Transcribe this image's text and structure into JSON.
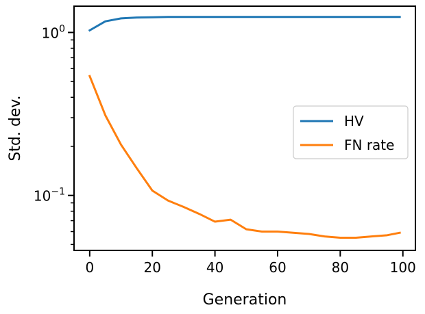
{
  "chart_data": {
    "type": "line",
    "xlabel": "Generation",
    "ylabel": "Std. dev.",
    "xlim": [
      -5,
      104
    ],
    "ylim": [
      0.046,
      1.45
    ],
    "yscale": "log",
    "grid": false,
    "legend_position": "center-right",
    "x_ticks": [
      {
        "value": 0,
        "label": "0"
      },
      {
        "value": 20,
        "label": "20"
      },
      {
        "value": 40,
        "label": "40"
      },
      {
        "value": 60,
        "label": "60"
      },
      {
        "value": 80,
        "label": "80"
      },
      {
        "value": 100,
        "label": "100"
      }
    ],
    "y_major_ticks": [
      {
        "value": 0.1,
        "base": "10",
        "exp": "−1"
      },
      {
        "value": 1.0,
        "base": "10",
        "exp": "0"
      }
    ],
    "y_minor_ticks": [
      0.05,
      0.06,
      0.07,
      0.08,
      0.09,
      0.2,
      0.3,
      0.4,
      0.5,
      0.6,
      0.7,
      0.8,
      0.9
    ],
    "series": [
      {
        "name": "HV",
        "color": "#1f77b4",
        "x": [
          0,
          5,
          10,
          15,
          20,
          25,
          30,
          35,
          40,
          45,
          50,
          55,
          60,
          65,
          70,
          75,
          80,
          85,
          90,
          95,
          99
        ],
        "y": [
          1.03,
          1.17,
          1.22,
          1.235,
          1.24,
          1.245,
          1.245,
          1.245,
          1.245,
          1.245,
          1.245,
          1.245,
          1.245,
          1.245,
          1.245,
          1.245,
          1.245,
          1.245,
          1.245,
          1.245,
          1.245
        ]
      },
      {
        "name": "FN rate",
        "color": "#ff7f0e",
        "x": [
          0,
          5,
          10,
          15,
          20,
          25,
          30,
          35,
          40,
          45,
          50,
          55,
          60,
          65,
          70,
          75,
          80,
          85,
          90,
          95,
          99
        ],
        "y": [
          0.54,
          0.31,
          0.205,
          0.147,
          0.107,
          0.093,
          0.085,
          0.077,
          0.069,
          0.071,
          0.062,
          0.06,
          0.06,
          0.059,
          0.058,
          0.056,
          0.055,
          0.055,
          0.056,
          0.057,
          0.059
        ]
      }
    ]
  }
}
